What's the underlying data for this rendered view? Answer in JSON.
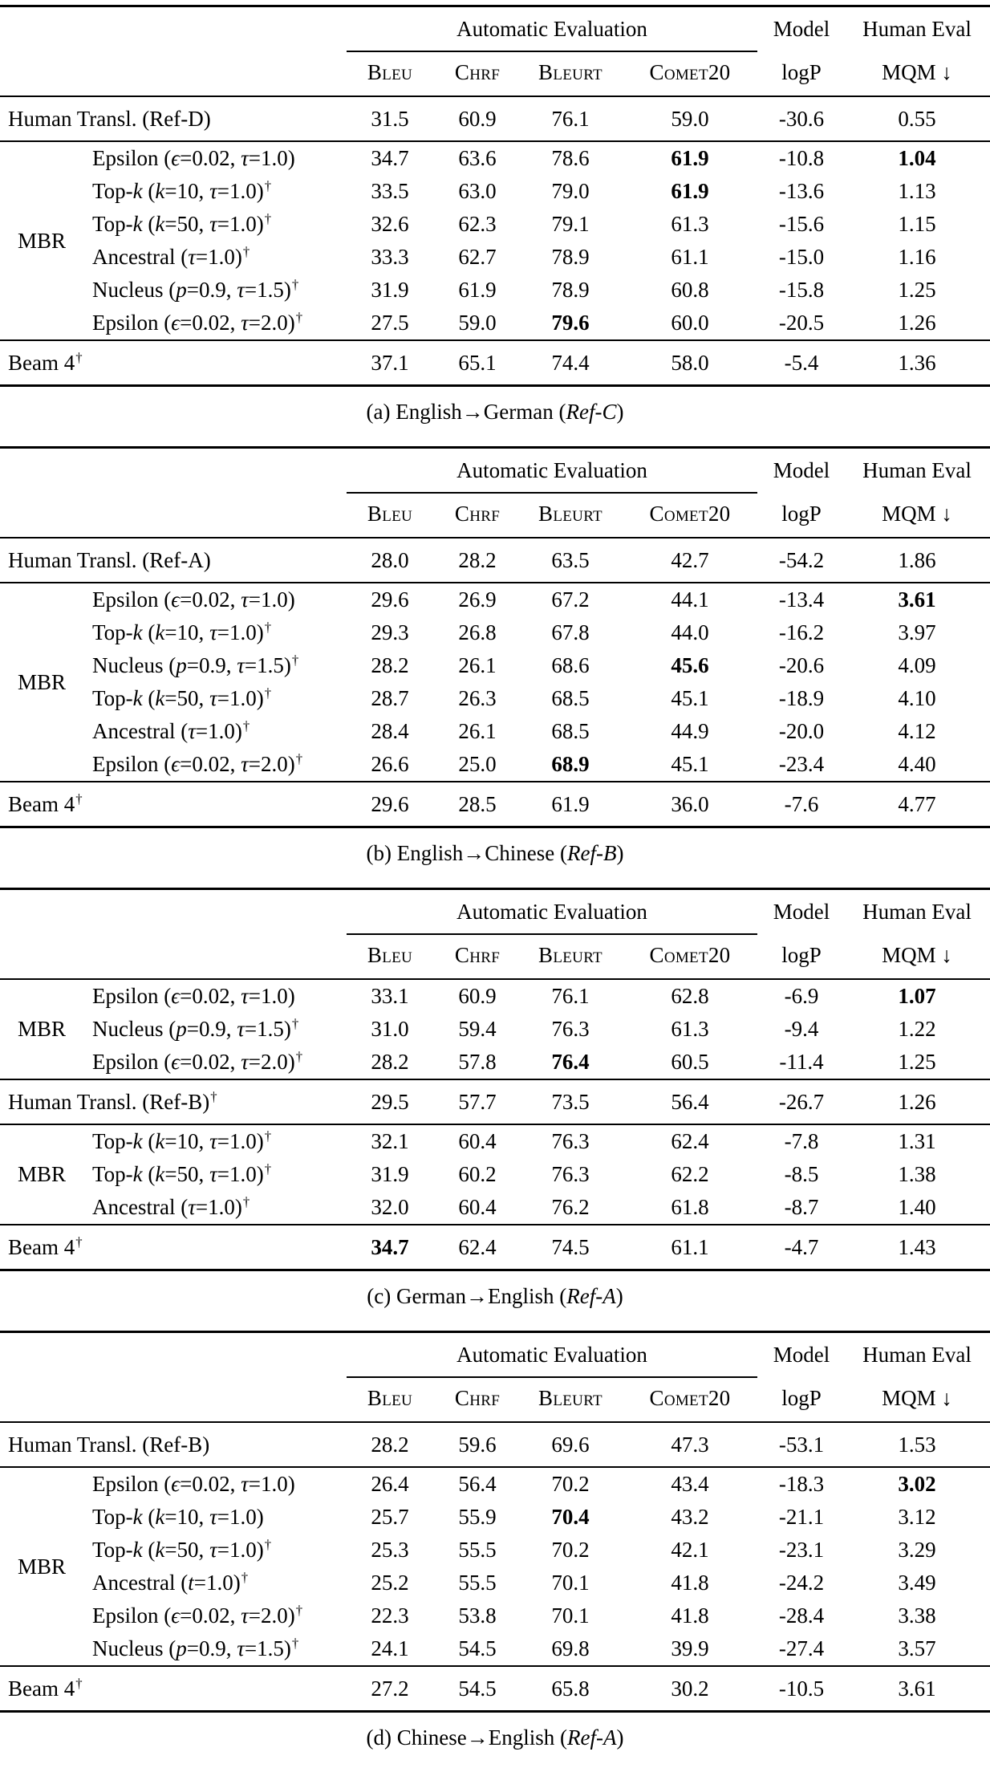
{
  "symbols": {
    "dagger": "†"
  },
  "header": {
    "auto_eval": "Automatic Evaluation",
    "model": "Model",
    "human_eval": "Human Eval",
    "metrics": [
      "Bleu",
      "Chrf",
      "Bleurt",
      "Comet20"
    ],
    "logp": "logP",
    "mqm": "MQM ↓"
  },
  "tables": [
    {
      "caption_pre": "(a) English→German (",
      "caption_ref": "Ref-C",
      "caption_post": ")",
      "sections": [
        {
          "group": null,
          "rows": [
            {
              "label": "Human Transl. (Ref-D)",
              "dagger": false,
              "values": [
                "31.5",
                "60.9",
                "76.1",
                "59.0",
                "-30.6",
                "0.55"
              ],
              "bold": []
            }
          ]
        },
        {
          "group": "MBR",
          "rows": [
            {
              "label": "Epsilon (ϵ=0.02, τ=1.0)",
              "dagger": false,
              "values": [
                "34.7",
                "63.6",
                "78.6",
                "61.9",
                "-10.8",
                "1.04"
              ],
              "bold": [
                3,
                5
              ]
            },
            {
              "label": "Top-k (k=10, τ=1.0)",
              "dagger": true,
              "values": [
                "33.5",
                "63.0",
                "79.0",
                "61.9",
                "-13.6",
                "1.13"
              ],
              "bold": [
                3
              ]
            },
            {
              "label": "Top-k (k=50, τ=1.0)",
              "dagger": true,
              "values": [
                "32.6",
                "62.3",
                "79.1",
                "61.3",
                "-15.6",
                "1.15"
              ],
              "bold": []
            },
            {
              "label": "Ancestral (τ=1.0)",
              "dagger": true,
              "values": [
                "33.3",
                "62.7",
                "78.9",
                "61.1",
                "-15.0",
                "1.16"
              ],
              "bold": []
            },
            {
              "label": "Nucleus (p=0.9, τ=1.5)",
              "dagger": true,
              "values": [
                "31.9",
                "61.9",
                "78.9",
                "60.8",
                "-15.8",
                "1.25"
              ],
              "bold": []
            },
            {
              "label": "Epsilon (ϵ=0.02, τ=2.0)",
              "dagger": true,
              "values": [
                "27.5",
                "59.0",
                "79.6",
                "60.0",
                "-20.5",
                "1.26"
              ],
              "bold": [
                2
              ]
            }
          ]
        },
        {
          "group": null,
          "rows": [
            {
              "label": "Beam 4",
              "dagger": true,
              "values": [
                "37.1",
                "65.1",
                "74.4",
                "58.0",
                "-5.4",
                "1.36"
              ],
              "bold": []
            }
          ]
        }
      ]
    },
    {
      "caption_pre": "(b) English→Chinese (",
      "caption_ref": "Ref-B",
      "caption_post": ")",
      "sections": [
        {
          "group": null,
          "rows": [
            {
              "label": "Human Transl. (Ref-A)",
              "dagger": false,
              "values": [
                "28.0",
                "28.2",
                "63.5",
                "42.7",
                "-54.2",
                "1.86"
              ],
              "bold": []
            }
          ]
        },
        {
          "group": "MBR",
          "rows": [
            {
              "label": "Epsilon (ϵ=0.02, τ=1.0)",
              "dagger": false,
              "values": [
                "29.6",
                "26.9",
                "67.2",
                "44.1",
                "-13.4",
                "3.61"
              ],
              "bold": [
                5
              ]
            },
            {
              "label": "Top-k (k=10, τ=1.0)",
              "dagger": true,
              "values": [
                "29.3",
                "26.8",
                "67.8",
                "44.0",
                "-16.2",
                "3.97"
              ],
              "bold": []
            },
            {
              "label": "Nucleus (p=0.9, τ=1.5)",
              "dagger": true,
              "values": [
                "28.2",
                "26.1",
                "68.6",
                "45.6",
                "-20.6",
                "4.09"
              ],
              "bold": [
                3
              ]
            },
            {
              "label": "Top-k (k=50, τ=1.0)",
              "dagger": true,
              "values": [
                "28.7",
                "26.3",
                "68.5",
                "45.1",
                "-18.9",
                "4.10"
              ],
              "bold": []
            },
            {
              "label": "Ancestral (τ=1.0)",
              "dagger": true,
              "values": [
                "28.4",
                "26.1",
                "68.5",
                "44.9",
                "-20.0",
                "4.12"
              ],
              "bold": []
            },
            {
              "label": "Epsilon (ϵ=0.02, τ=2.0)",
              "dagger": true,
              "values": [
                "26.6",
                "25.0",
                "68.9",
                "45.1",
                "-23.4",
                "4.40"
              ],
              "bold": [
                2
              ]
            }
          ]
        },
        {
          "group": null,
          "rows": [
            {
              "label": "Beam 4",
              "dagger": true,
              "values": [
                "29.6",
                "28.5",
                "61.9",
                "36.0",
                "-7.6",
                "4.77"
              ],
              "bold": []
            }
          ]
        }
      ]
    },
    {
      "caption_pre": "(c) German→English (",
      "caption_ref": "Ref-A",
      "caption_post": ")",
      "sections": [
        {
          "group": "MBR",
          "rows": [
            {
              "label": "Epsilon (ϵ=0.02, τ=1.0)",
              "dagger": false,
              "values": [
                "33.1",
                "60.9",
                "76.1",
                "62.8",
                "-6.9",
                "1.07"
              ],
              "bold": [
                5
              ]
            },
            {
              "label": "Nucleus (p=0.9, τ=1.5)",
              "dagger": true,
              "values": [
                "31.0",
                "59.4",
                "76.3",
                "61.3",
                "-9.4",
                "1.22"
              ],
              "bold": []
            },
            {
              "label": "Epsilon (ϵ=0.02, τ=2.0)",
              "dagger": true,
              "values": [
                "28.2",
                "57.8",
                "76.4",
                "60.5",
                "-11.4",
                "1.25"
              ],
              "bold": [
                2
              ]
            }
          ]
        },
        {
          "group": null,
          "rows": [
            {
              "label": "Human Transl. (Ref-B)",
              "dagger": true,
              "values": [
                "29.5",
                "57.7",
                "73.5",
                "56.4",
                "-26.7",
                "1.26"
              ],
              "bold": []
            }
          ]
        },
        {
          "group": "MBR",
          "rows": [
            {
              "label": "Top-k (k=10, τ=1.0)",
              "dagger": true,
              "values": [
                "32.1",
                "60.4",
                "76.3",
                "62.4",
                "-7.8",
                "1.31"
              ],
              "bold": []
            },
            {
              "label": "Top-k (k=50, τ=1.0)",
              "dagger": true,
              "values": [
                "31.9",
                "60.2",
                "76.3",
                "62.2",
                "-8.5",
                "1.38"
              ],
              "bold": []
            },
            {
              "label": "Ancestral (τ=1.0)",
              "dagger": true,
              "values": [
                "32.0",
                "60.4",
                "76.2",
                "61.8",
                "-8.7",
                "1.40"
              ],
              "bold": []
            }
          ]
        },
        {
          "group": null,
          "rows": [
            {
              "label": "Beam 4",
              "dagger": true,
              "values": [
                "34.7",
                "62.4",
                "74.5",
                "61.1",
                "-4.7",
                "1.43"
              ],
              "bold": [
                0
              ]
            }
          ]
        }
      ]
    },
    {
      "caption_pre": "(d) Chinese→English (",
      "caption_ref": "Ref-A",
      "caption_post": ")",
      "sections": [
        {
          "group": null,
          "rows": [
            {
              "label": "Human Transl. (Ref-B)",
              "dagger": false,
              "values": [
                "28.2",
                "59.6",
                "69.6",
                "47.3",
                "-53.1",
                "1.53"
              ],
              "bold": []
            }
          ]
        },
        {
          "group": "MBR",
          "rows": [
            {
              "label": "Epsilon (ϵ=0.02, τ=1.0)",
              "dagger": false,
              "values": [
                "26.4",
                "56.4",
                "70.2",
                "43.4",
                "-18.3",
                "3.02"
              ],
              "bold": [
                5
              ]
            },
            {
              "label": "Top-k (k=10, τ=1.0)",
              "dagger": false,
              "values": [
                "25.7",
                "55.9",
                "70.4",
                "43.2",
                "-21.1",
                "3.12"
              ],
              "bold": [
                2
              ]
            },
            {
              "label": "Top-k (k=50, τ=1.0)",
              "dagger": true,
              "values": [
                "25.3",
                "55.5",
                "70.2",
                "42.1",
                "-23.1",
                "3.29"
              ],
              "bold": []
            },
            {
              "label": "Ancestral (t=1.0)",
              "dagger": true,
              "values": [
                "25.2",
                "55.5",
                "70.1",
                "41.8",
                "-24.2",
                "3.49"
              ],
              "bold": []
            },
            {
              "label": "Epsilon (ϵ=0.02, τ=2.0)",
              "dagger": true,
              "values": [
                "22.3",
                "53.8",
                "70.1",
                "41.8",
                "-28.4",
                "3.38"
              ],
              "bold": []
            },
            {
              "label": "Nucleus (p=0.9, τ=1.5)",
              "dagger": true,
              "values": [
                "24.1",
                "54.5",
                "69.8",
                "39.9",
                "-27.4",
                "3.57"
              ],
              "bold": []
            }
          ]
        },
        {
          "group": null,
          "rows": [
            {
              "label": "Beam 4",
              "dagger": true,
              "values": [
                "27.2",
                "54.5",
                "65.8",
                "30.2",
                "-10.5",
                "3.61"
              ],
              "bold": []
            }
          ]
        }
      ]
    }
  ]
}
